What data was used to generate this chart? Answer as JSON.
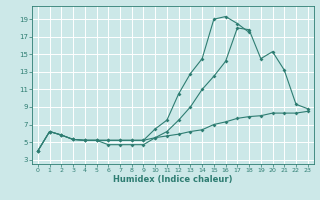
{
  "bg_color": "#cce8e8",
  "grid_color": "#b8d8d8",
  "line_color": "#2e7d72",
  "xlabel": "Humidex (Indice chaleur)",
  "xlim": [
    -0.5,
    23.5
  ],
  "ylim": [
    2.5,
    20.5
  ],
  "yticks": [
    3,
    5,
    7,
    9,
    11,
    13,
    15,
    17,
    19
  ],
  "xticks": [
    0,
    1,
    2,
    3,
    4,
    5,
    6,
    7,
    8,
    9,
    10,
    11,
    12,
    13,
    14,
    15,
    16,
    17,
    18,
    19,
    20,
    21,
    22,
    23
  ],
  "line1_x": [
    0,
    1,
    2,
    3,
    4,
    5,
    6,
    7,
    8,
    9,
    10,
    11,
    12,
    13,
    14,
    15,
    16,
    17,
    18
  ],
  "line1_y": [
    4.0,
    6.2,
    5.8,
    5.3,
    5.2,
    5.2,
    5.2,
    5.2,
    5.2,
    5.2,
    6.5,
    7.5,
    10.5,
    12.8,
    14.5,
    19.0,
    19.3,
    18.5,
    17.5
  ],
  "line2_x": [
    0,
    1,
    2,
    3,
    4,
    5,
    6,
    7,
    8,
    9,
    10,
    11,
    12,
    13,
    14,
    15,
    16,
    17,
    18,
    19,
    20,
    21,
    22,
    23
  ],
  "line2_y": [
    4.0,
    6.2,
    5.8,
    5.3,
    5.2,
    5.2,
    5.2,
    5.2,
    5.2,
    5.2,
    5.5,
    6.2,
    7.5,
    9.0,
    11.0,
    12.5,
    14.2,
    18.0,
    17.8,
    14.5,
    15.3,
    13.2,
    9.3,
    8.8
  ],
  "line3_x": [
    0,
    1,
    2,
    3,
    4,
    5,
    6,
    7,
    8,
    9,
    10,
    11,
    12,
    13,
    14,
    15,
    16,
    17,
    18,
    19,
    20,
    21,
    22,
    23
  ],
  "line3_y": [
    4.0,
    6.2,
    5.8,
    5.3,
    5.2,
    5.2,
    4.7,
    4.7,
    4.7,
    4.7,
    5.5,
    5.7,
    5.9,
    6.2,
    6.4,
    7.0,
    7.3,
    7.7,
    7.9,
    8.0,
    8.3,
    8.3,
    8.3,
    8.5
  ]
}
